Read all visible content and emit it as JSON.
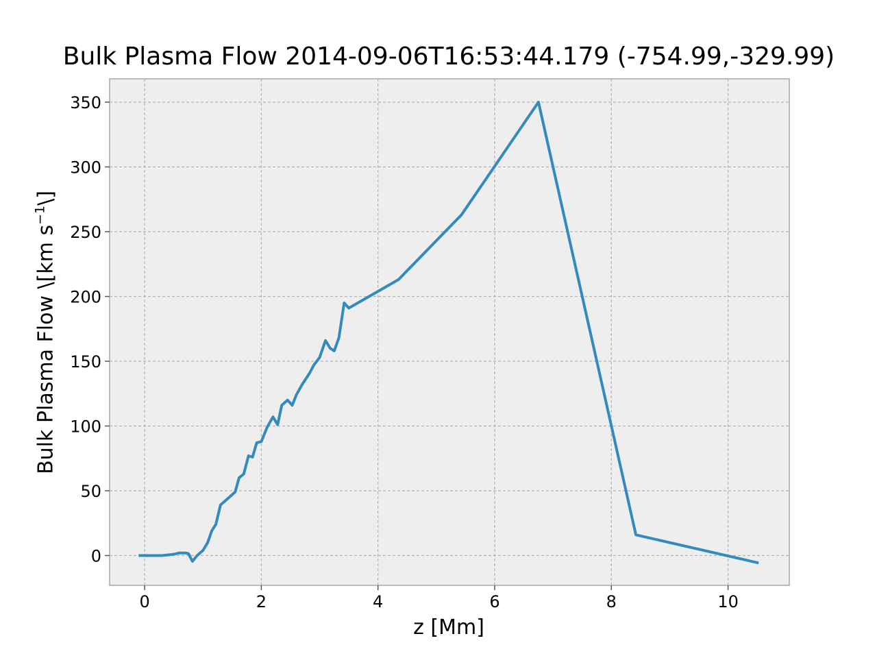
{
  "chart_data": {
    "type": "line",
    "title": "Bulk Plasma Flow 2014-09-06T16:53:44.179 (-754.99,-329.99)",
    "xlabel": "z [Mm]",
    "ylabel_prefix": "Bulk Plasma Flow \\[km s",
    "ylabel_sup": "−1",
    "ylabel_suffix": "\\]",
    "xlim": [
      -0.6,
      11.05
    ],
    "ylim": [
      -23,
      368
    ],
    "xticks": [
      0,
      2,
      4,
      6,
      8,
      10
    ],
    "yticks": [
      0,
      50,
      100,
      150,
      200,
      250,
      300,
      350
    ],
    "grid": true,
    "colors": {
      "line": "#348abd",
      "axes_bg": "#eeeeee",
      "grid": "#b2b2b2",
      "spine": "#bcbcbc"
    },
    "series": [
      {
        "x": [
          -0.08,
          0.1,
          0.3,
          0.4,
          0.5,
          0.6,
          0.7,
          0.75,
          0.82,
          0.9,
          1.0,
          1.08,
          1.15,
          1.22,
          1.3,
          1.45,
          1.55,
          1.62,
          1.7,
          1.78,
          1.85,
          1.92,
          2.0,
          2.1,
          2.2,
          2.28,
          2.35,
          2.45,
          2.53,
          2.6,
          2.7,
          2.83,
          2.9,
          3.0,
          3.1,
          3.18,
          3.25,
          3.33,
          3.42,
          3.5,
          4.35,
          5.43,
          6.75,
          8.42,
          10.5
        ],
        "y": [
          0,
          0,
          0,
          0.5,
          1,
          2,
          2,
          1.5,
          -4.5,
          0,
          4,
          10,
          19,
          24,
          39,
          45,
          49,
          60,
          63,
          77,
          76,
          87,
          88,
          99,
          107,
          101,
          116,
          120,
          116,
          124,
          132,
          141,
          147,
          153,
          166,
          160,
          158,
          168,
          195,
          191,
          213,
          263,
          350,
          16,
          -5.5
        ]
      }
    ]
  }
}
